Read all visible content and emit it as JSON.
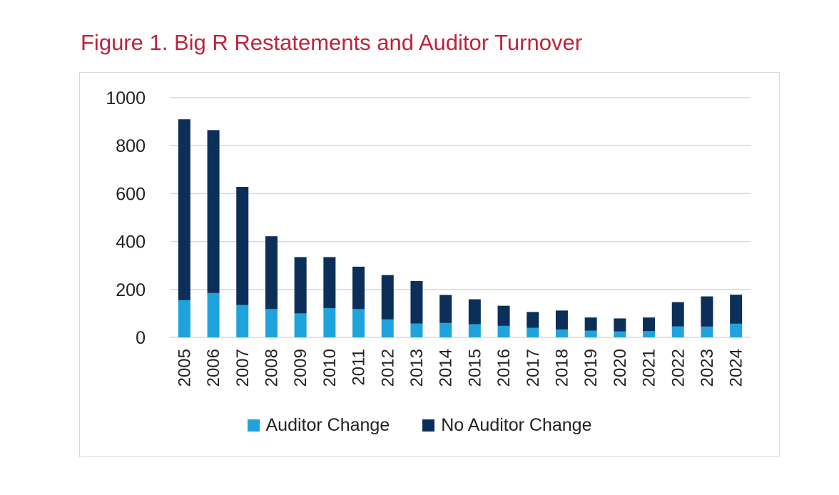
{
  "figure_title": "Figure 1. Big R Restatements and Auditor Turnover",
  "colors": {
    "auditor_change": "#1fa3dc",
    "no_auditor_change": "#0b2f59",
    "grid": "#d9d9d9",
    "axis_text": "#222222"
  },
  "chart_data": {
    "type": "bar",
    "stacked": true,
    "title": "Figure 1. Big R Restatements and Auditor Turnover",
    "xlabel": "",
    "ylabel": "",
    "ylim": [
      0,
      1000
    ],
    "yticks": [
      0,
      200,
      400,
      600,
      800,
      1000
    ],
    "grid": true,
    "legend": "bottom",
    "categories": [
      "2005",
      "2006",
      "2007",
      "2008",
      "2009",
      "2010",
      "2011",
      "2012",
      "2013",
      "2014",
      "2015",
      "2016",
      "2017",
      "2018",
      "2019",
      "2020",
      "2021",
      "2022",
      "2023",
      "2024"
    ],
    "series": [
      {
        "name": "Auditor Change",
        "color": "#1fa3dc",
        "values": [
          155,
          185,
          135,
          118,
          100,
          122,
          118,
          75,
          58,
          60,
          55,
          48,
          40,
          33,
          28,
          25,
          26,
          46,
          45,
          57
        ]
      },
      {
        "name": "No Auditor Change",
        "color": "#0b2f59",
        "values": [
          755,
          680,
          493,
          304,
          235,
          213,
          177,
          185,
          177,
          117,
          104,
          84,
          66,
          79,
          55,
          54,
          57,
          101,
          126,
          121
        ]
      }
    ]
  },
  "legend_items": [
    "Auditor Change",
    "No Auditor Change"
  ]
}
